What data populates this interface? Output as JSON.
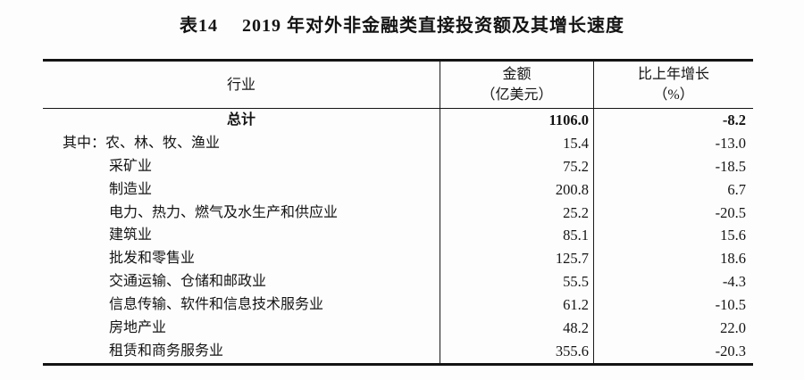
{
  "page": {
    "title": "表14　 2019 年对外非金融类直接投资额及其增长速度"
  },
  "colors": {
    "text": "#141414",
    "border": "#141414",
    "background": "#fdfdfd"
  },
  "table": {
    "headers": {
      "industry": "行业",
      "amount_line1": "金额",
      "amount_line2": "（亿美元）",
      "growth_line1": "比上年增长",
      "growth_line2": "（%）"
    },
    "rows": [
      {
        "name": "总计",
        "amount": "1106.0",
        "growth": "-8.2"
      },
      {
        "name": "其中：农、林、牧、渔业",
        "amount": "15.4",
        "growth": "-13.0"
      },
      {
        "name": "采矿业",
        "amount": "75.2",
        "growth": "-18.5"
      },
      {
        "name": "制造业",
        "amount": "200.8",
        "growth": "6.7"
      },
      {
        "name": "电力、热力、燃气及水生产和供应业",
        "amount": "25.2",
        "growth": "-20.5"
      },
      {
        "name": "建筑业",
        "amount": "85.1",
        "growth": "15.6"
      },
      {
        "name": "批发和零售业",
        "amount": "125.7",
        "growth": "18.6"
      },
      {
        "name": "交通运输、仓储和邮政业",
        "amount": "55.5",
        "growth": "-4.3"
      },
      {
        "name": "信息传输、软件和信息技术服务业",
        "amount": "61.2",
        "growth": "-10.5"
      },
      {
        "name": "房地产业",
        "amount": "48.2",
        "growth": "22.0"
      },
      {
        "name": "租赁和商务服务业",
        "amount": "355.6",
        "growth": "-20.3"
      }
    ]
  }
}
